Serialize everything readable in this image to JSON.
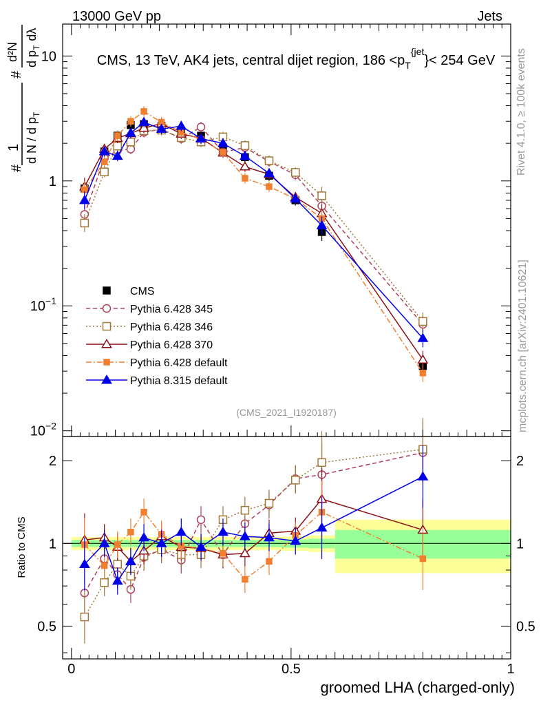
{
  "header": {
    "energy_label": "13000 GeV pp",
    "category_label": "Jets"
  },
  "side_labels": {
    "rivet": "Rivet 4.1.0, ≥ 100k events",
    "mcplots": "mcplots.cern.ch [arXiv:2401.10621]"
  },
  "chart_data": [
    {
      "type": "line",
      "panel": "main",
      "title": "CMS, 13 TeV, AK4 jets, central dijet region, 186 <p_T^{jet}< 254 GeV",
      "title_parts": {
        "prefix": "CMS, 13 TeV, AK4 jets, central dijet region, 186 <p",
        "sub": "T",
        "sup": "{jet",
        "suffix": "}< 254 GeV"
      },
      "ylabel": "1/dN/dp_T  d²N/dp_T dλ",
      "ylabel_parts": {
        "hash1": "#",
        "frac_num": "1",
        "frac_den": "d N / d p",
        "sub": "T",
        "hash2": "#",
        "inner_num": "d²N",
        "inner_den": "d p",
        "inner_den_sub": "T",
        "inner_den_tail": "dλ"
      },
      "yscale": "log",
      "ylim": [
        0.009,
        18
      ],
      "xlim": [
        -0.02,
        1.0
      ],
      "yticks": [
        {
          "value": 0.01,
          "label_base": "10",
          "label_exp": "−2"
        },
        {
          "value": 0.1,
          "label_base": "10",
          "label_exp": "−1"
        },
        {
          "value": 1,
          "label_base": "1",
          "label_exp": ""
        },
        {
          "value": 10,
          "label_base": "10",
          "label_exp": ""
        }
      ],
      "watermark": "(CMS_2021_I1920187)",
      "legend_position": "lower-left",
      "bins": [
        0.0,
        0.06,
        0.09,
        0.12,
        0.15,
        0.18,
        0.23,
        0.27,
        0.32,
        0.37,
        0.42,
        0.48,
        0.54,
        0.6,
        1.0
      ],
      "x": [
        0.03,
        0.075,
        0.105,
        0.135,
        0.165,
        0.205,
        0.25,
        0.295,
        0.345,
        0.395,
        0.45,
        0.51,
        0.57,
        0.8
      ],
      "series": [
        {
          "name": "CMS",
          "color": "#000000",
          "marker": "square-filled",
          "line": "none",
          "values": [
            0.87,
            1.72,
            2.3,
            2.8,
            2.85,
            2.75,
            2.5,
            2.3,
            1.85,
            1.55,
            1.1,
            0.7,
            0.39,
            0.033
          ]
        },
        {
          "name": "Pythia 6.428 345",
          "color": "#b0405a",
          "marker": "circle-open",
          "line": "dashed",
          "values": [
            0.54,
            1.52,
            1.75,
            1.8,
            2.45,
            2.6,
            2.18,
            2.7,
            1.7,
            1.85,
            1.43,
            1.12,
            0.63,
            0.071
          ]
        },
        {
          "name": "Pythia 6.428 346",
          "color": "#a07838",
          "marker": "square-open",
          "line": "dotted",
          "values": [
            0.46,
            1.18,
            1.9,
            2.05,
            2.52,
            2.55,
            2.22,
            2.05,
            2.25,
            1.92,
            1.45,
            1.17,
            0.76,
            0.075
          ]
        },
        {
          "name": "Pythia 6.428 370",
          "color": "#8b0f16",
          "marker": "triangle-open",
          "line": "solid",
          "values": [
            0.9,
            1.8,
            2.2,
            2.4,
            2.65,
            2.88,
            2.38,
            2.2,
            1.68,
            1.3,
            1.13,
            0.74,
            0.55,
            0.037
          ]
        },
        {
          "name": "Pythia 6.428 default",
          "color": "#f07f30",
          "marker": "square-filled",
          "line": "dashdot",
          "values": [
            0.85,
            1.42,
            2.3,
            3.0,
            3.6,
            2.95,
            2.45,
            2.15,
            1.7,
            1.05,
            0.9,
            0.72,
            0.5,
            0.029
          ]
        },
        {
          "name": "Pythia 8.315 default",
          "color": "#0000e8",
          "marker": "triangle-filled",
          "line": "solid",
          "values": [
            0.7,
            1.72,
            1.58,
            2.42,
            2.95,
            2.6,
            2.75,
            2.18,
            2.0,
            1.58,
            1.15,
            0.72,
            0.44,
            0.055
          ]
        }
      ]
    },
    {
      "type": "line",
      "panel": "ratio",
      "ylabel": "Ratio to CMS",
      "xlabel": "groomed LHA (charged-only)",
      "yscale": "log",
      "ylim": [
        0.38,
        2.45
      ],
      "xlim": [
        -0.02,
        1.0
      ],
      "yticks": [
        {
          "value": 0.5,
          "label": "0.5"
        },
        {
          "value": 1,
          "label": "1"
        },
        {
          "value": 2,
          "label": "2"
        }
      ],
      "xticks": [
        {
          "value": 0,
          "label": "0"
        },
        {
          "value": 0.5,
          "label": "0.5"
        },
        {
          "value": 1,
          "label": "1"
        }
      ],
      "uncertainty_bands": {
        "bins": [
          0.0,
          0.06,
          0.09,
          0.12,
          0.15,
          0.18,
          0.23,
          0.27,
          0.32,
          0.37,
          0.42,
          0.48,
          0.54,
          0.6,
          1.0
        ],
        "stat_halfwidth": [
          0.03,
          0.03,
          0.03,
          0.03,
          0.03,
          0.03,
          0.03,
          0.03,
          0.03,
          0.03,
          0.03,
          0.035,
          0.04,
          0.12
        ],
        "total_halfwidth": [
          0.055,
          0.055,
          0.055,
          0.055,
          0.055,
          0.055,
          0.055,
          0.055,
          0.055,
          0.055,
          0.055,
          0.06,
          0.07,
          0.22
        ],
        "stat_color": "#99ff99",
        "total_color": "#ffff99"
      },
      "series": [
        {
          "name": "Pythia 6.428 345",
          "color": "#b0405a",
          "marker": "circle-open",
          "line": "dashed",
          "values": [
            0.66,
            0.88,
            0.77,
            0.68,
            0.89,
            0.95,
            0.87,
            1.22,
            0.91,
            1.18,
            1.38,
            1.72,
            1.78,
            2.14
          ]
        },
        {
          "name": "Pythia 6.428 346",
          "color": "#a07838",
          "marker": "square-open",
          "line": "dotted",
          "values": [
            0.54,
            0.72,
            0.84,
            0.76,
            0.9,
            0.95,
            0.91,
            0.91,
            1.22,
            1.32,
            1.4,
            1.7,
            1.97,
            2.2
          ]
        },
        {
          "name": "Pythia 6.428 370",
          "color": "#8b0f16",
          "marker": "triangle-open",
          "line": "solid",
          "values": [
            1.03,
            1.05,
            0.97,
            0.86,
            0.94,
            1.06,
            0.97,
            0.96,
            0.91,
            0.92,
            1.09,
            1.11,
            1.45,
            1.12
          ]
        },
        {
          "name": "Pythia 6.428 default",
          "color": "#f07f30",
          "marker": "square-filled",
          "line": "dashdot",
          "values": [
            0.99,
            0.83,
            0.99,
            1.1,
            1.3,
            1.08,
            0.98,
            0.96,
            0.92,
            0.74,
            0.86,
            1.07,
            1.3,
            0.88
          ]
        },
        {
          "name": "Pythia 8.315 default",
          "color": "#0000e8",
          "marker": "triangle-filled",
          "line": "solid",
          "values": [
            0.84,
            1.0,
            0.73,
            0.86,
            1.05,
            1.0,
            1.1,
            0.97,
            1.1,
            1.06,
            1.05,
            1.02,
            1.14,
            1.75
          ]
        }
      ]
    }
  ]
}
